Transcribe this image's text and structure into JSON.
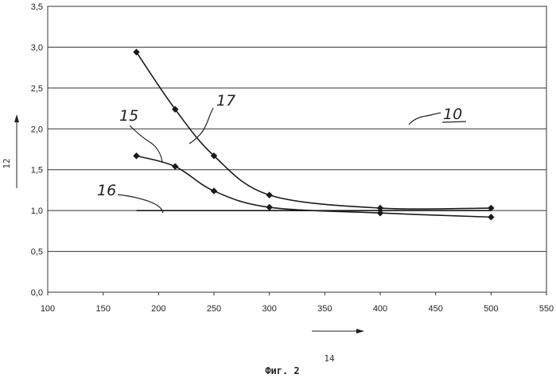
{
  "chart_data": {
    "type": "line",
    "x": [
      180,
      215,
      250,
      300,
      400,
      500
    ],
    "series": [
      {
        "name": "17",
        "values": [
          2.94,
          2.24,
          1.67,
          1.19,
          1.03,
          1.03
        ]
      },
      {
        "name": "15",
        "values": [
          1.67,
          1.54,
          1.24,
          1.04,
          0.97,
          0.92
        ]
      },
      {
        "name": "16",
        "values": [
          1.0,
          1.0,
          1.0,
          1.0,
          1.0,
          1.0
        ]
      }
    ],
    "xlim": [
      100,
      550
    ],
    "ylim": [
      0,
      3.5
    ],
    "xticks": [
      "100",
      "150",
      "200",
      "250",
      "300",
      "350",
      "400",
      "450",
      "500",
      "550"
    ],
    "yticks": [
      "0,0",
      "0,5",
      "1,0",
      "1,5",
      "2,0",
      "2,5",
      "3,0",
      "3,5"
    ],
    "grid": true,
    "xlabel": "14",
    "ylabel": "12",
    "annotations": [
      "10",
      "15",
      "16",
      "17"
    ],
    "caption": "Фиг. 2",
    "line_color": "#1a1a1a"
  }
}
